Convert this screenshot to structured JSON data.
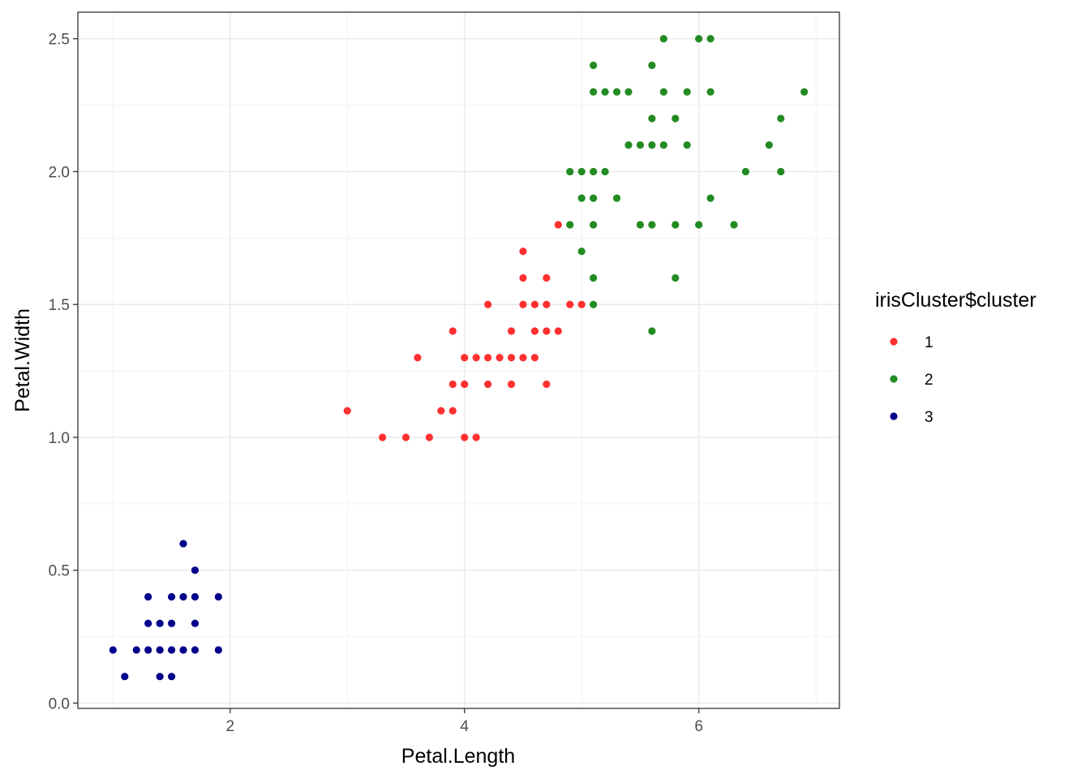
{
  "chart_data": {
    "type": "scatter",
    "title": "",
    "xlabel": "Petal.Length",
    "ylabel": "Petal.Width",
    "xlim": [
      0.7,
      7.2
    ],
    "ylim": [
      -0.02,
      2.6
    ],
    "x_ticks": [
      2,
      4,
      6
    ],
    "x_tick_labels": [
      "2",
      "4",
      "6"
    ],
    "y_ticks": [
      0.0,
      0.5,
      1.0,
      1.5,
      2.0,
      2.5
    ],
    "y_tick_labels": [
      "0.0",
      "0.5",
      "1.0",
      "1.5",
      "2.0",
      "2.5"
    ],
    "grid": true,
    "legend": {
      "title": "irisCluster$cluster",
      "placement": "right"
    },
    "series": [
      {
        "name": "1",
        "color": "#ff3030",
        "points": [
          [
            3.0,
            1.1
          ],
          [
            3.3,
            1.0
          ],
          [
            3.5,
            1.0
          ],
          [
            3.7,
            1.0
          ],
          [
            3.6,
            1.3
          ],
          [
            3.8,
            1.1
          ],
          [
            3.9,
            1.1
          ],
          [
            3.9,
            1.2
          ],
          [
            3.9,
            1.4
          ],
          [
            4.0,
            1.0
          ],
          [
            4.1,
            1.0
          ],
          [
            4.0,
            1.2
          ],
          [
            4.0,
            1.3
          ],
          [
            4.1,
            1.3
          ],
          [
            4.2,
            1.2
          ],
          [
            4.2,
            1.3
          ],
          [
            4.2,
            1.5
          ],
          [
            4.3,
            1.3
          ],
          [
            4.4,
            1.2
          ],
          [
            4.4,
            1.3
          ],
          [
            4.4,
            1.4
          ],
          [
            4.5,
            1.3
          ],
          [
            4.5,
            1.5
          ],
          [
            4.5,
            1.6
          ],
          [
            4.5,
            1.7
          ],
          [
            4.6,
            1.3
          ],
          [
            4.6,
            1.4
          ],
          [
            4.6,
            1.5
          ],
          [
            4.7,
            1.2
          ],
          [
            4.7,
            1.4
          ],
          [
            4.7,
            1.5
          ],
          [
            4.7,
            1.6
          ],
          [
            4.8,
            1.4
          ],
          [
            4.8,
            1.8
          ],
          [
            4.9,
            1.5
          ],
          [
            5.0,
            1.5
          ]
        ]
      },
      {
        "name": "2",
        "color": "#228b22",
        "points": [
          [
            4.9,
            1.8
          ],
          [
            4.9,
            2.0
          ],
          [
            5.0,
            1.7
          ],
          [
            5.0,
            1.9
          ],
          [
            5.0,
            2.0
          ],
          [
            5.1,
            1.5
          ],
          [
            5.1,
            1.6
          ],
          [
            5.1,
            1.8
          ],
          [
            5.1,
            1.9
          ],
          [
            5.1,
            2.0
          ],
          [
            5.1,
            2.3
          ],
          [
            5.1,
            2.4
          ],
          [
            5.2,
            2.0
          ],
          [
            5.2,
            2.3
          ],
          [
            5.3,
            1.9
          ],
          [
            5.3,
            2.3
          ],
          [
            5.4,
            2.1
          ],
          [
            5.4,
            2.3
          ],
          [
            5.5,
            1.8
          ],
          [
            5.5,
            2.1
          ],
          [
            5.6,
            1.4
          ],
          [
            5.6,
            1.8
          ],
          [
            5.6,
            2.1
          ],
          [
            5.6,
            2.2
          ],
          [
            5.6,
            2.4
          ],
          [
            5.7,
            2.1
          ],
          [
            5.7,
            2.3
          ],
          [
            5.7,
            2.5
          ],
          [
            5.8,
            1.6
          ],
          [
            5.8,
            1.8
          ],
          [
            5.8,
            2.2
          ],
          [
            5.9,
            2.1
          ],
          [
            5.9,
            2.3
          ],
          [
            6.0,
            1.8
          ],
          [
            6.0,
            2.5
          ],
          [
            6.1,
            1.9
          ],
          [
            6.1,
            2.3
          ],
          [
            6.1,
            2.5
          ],
          [
            6.3,
            1.8
          ],
          [
            6.4,
            2.0
          ],
          [
            6.6,
            2.1
          ],
          [
            6.7,
            2.0
          ],
          [
            6.7,
            2.2
          ],
          [
            6.9,
            2.3
          ]
        ]
      },
      {
        "name": "3",
        "color": "#00008b",
        "points": [
          [
            1.0,
            0.2
          ],
          [
            1.1,
            0.1
          ],
          [
            1.2,
            0.2
          ],
          [
            1.3,
            0.2
          ],
          [
            1.3,
            0.3
          ],
          [
            1.3,
            0.4
          ],
          [
            1.4,
            0.1
          ],
          [
            1.4,
            0.2
          ],
          [
            1.4,
            0.3
          ],
          [
            1.5,
            0.1
          ],
          [
            1.5,
            0.2
          ],
          [
            1.5,
            0.3
          ],
          [
            1.5,
            0.4
          ],
          [
            1.6,
            0.2
          ],
          [
            1.6,
            0.4
          ],
          [
            1.6,
            0.6
          ],
          [
            1.7,
            0.2
          ],
          [
            1.7,
            0.3
          ],
          [
            1.7,
            0.4
          ],
          [
            1.7,
            0.5
          ],
          [
            1.9,
            0.2
          ],
          [
            1.9,
            0.4
          ]
        ]
      }
    ]
  }
}
